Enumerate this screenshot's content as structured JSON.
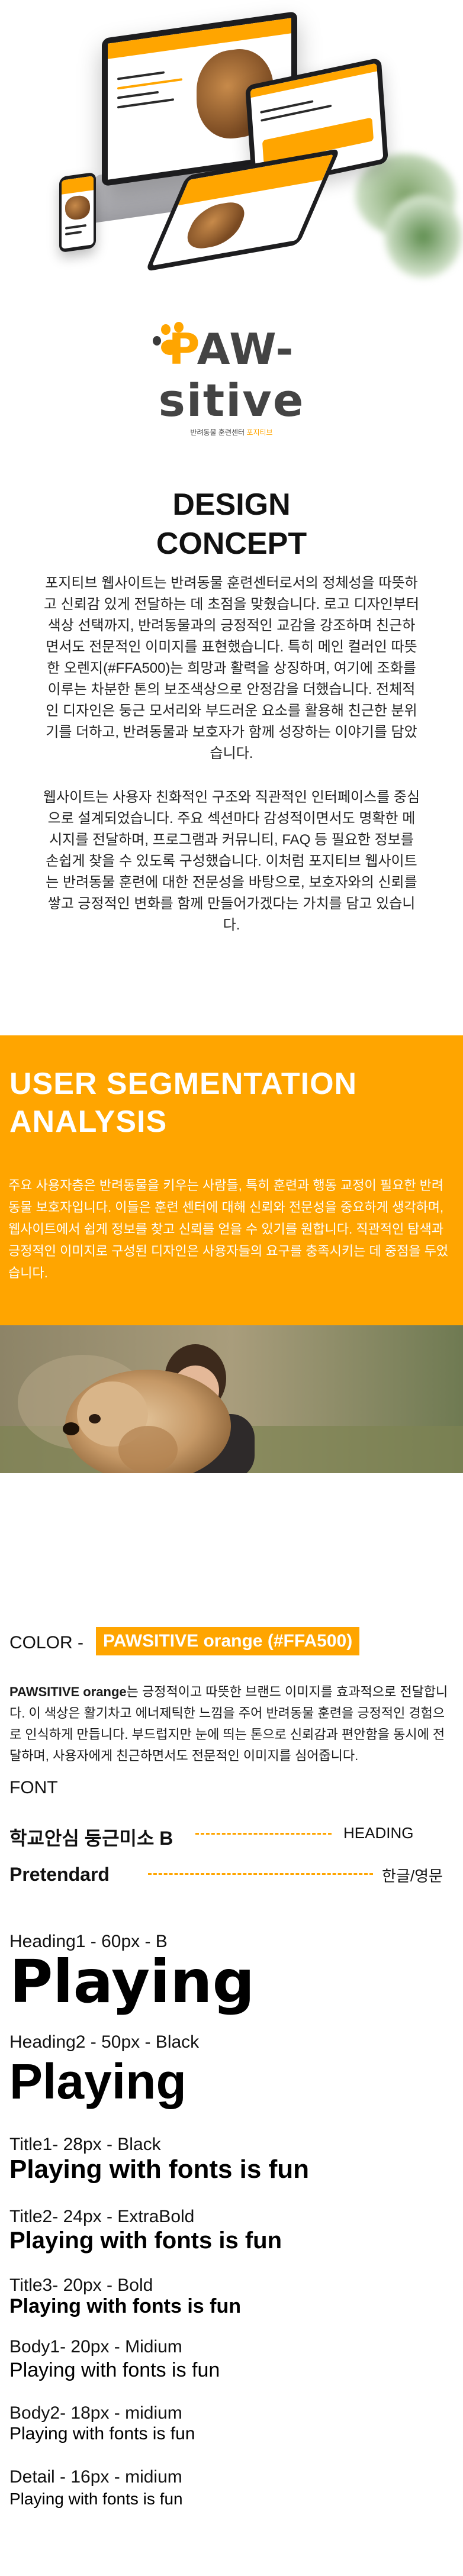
{
  "colors": {
    "brand": "#FFA500",
    "text": "#1a1a1a",
    "white": "#ffffff"
  },
  "logo": {
    "word_orange": "P",
    "word_rest": "AW-",
    "word_line2": "sitive",
    "subtitle_main": "반려동물 훈련센터",
    "subtitle_accent": "포지티브"
  },
  "design_concept": {
    "title_line1": "DESIGN",
    "title_line2": "CONCEPT",
    "para1": "포지티브 웹사이트는 반려동물 훈련센터로서의 정체성을 따뜻하고 신뢰감 있게 전달하는 데 초점을 맞췄습니다. 로고 디자인부터 색상 선택까지, 반려동물과의 긍정적인 교감을 강조하며 친근하면서도 전문적인 이미지를 표현했습니다. 특히 메인 컬러인 따뜻한 오렌지(#FFA500)는 희망과 활력을 상징하며, 여기에 조화를 이루는 차분한 톤의 보조색상으로 안정감을 더했습니다. 전체적인 디자인은 둥근 모서리와 부드러운 요소를 활용해 친근한 분위기를 더하고, 반려동물과 보호자가 함께 성장하는 이야기를 담았습니다.",
    "para2": "웹사이트는 사용자 친화적인 구조와 직관적인 인터페이스를 중심으로 설계되었습니다. 주요 섹션마다 감성적이면서도 명확한 메시지를 전달하며, 프로그램과 커뮤니티, FAQ 등 필요한 정보를 손쉽게 찾을 수 있도록 구성했습니다. 이처럼 포지티브 웹사이트는 반려동물 훈련에 대한 전문성을 바탕으로, 보호자와의 신뢰를 쌓고 긍정적인 변화를 함께 만들어가겠다는 가치를 담고 있습니다."
  },
  "segmentation": {
    "title_line1": "USER SEGMENTATION",
    "title_line2": "ANALYSIS",
    "body": "주요 사용자층은 반려동물을 키우는 사람들, 특히 훈련과 행동 교정이 필요한 반려동물 보호자입니다. 이들은 훈련 센터에 대해 신뢰와 전문성을 중요하게 생각하며, 웹사이트에서 쉽게 정보를 찾고 신뢰를 얻을 수 있기를 원합니다. 직관적인 탐색과 긍정적인 이미지로 구성된 디자인은 사용자들의 요구를 충족시키는 데 중점을 두었습니다."
  },
  "color_section": {
    "label": "COLOR -",
    "chip": "PAWSITIVE orange (#FFA500)",
    "body_bold": "PAWSITIVE orange",
    "body_rest": "는 긍정적이고 따뜻한 브랜드 이미지를 효과적으로 전달합니다. 이 색상은 활기차고 에너제틱한 느낌을 주어 반려동물 훈련을 긍정적인 경험으로 인식하게 만듭니다. 부드럽지만 눈에 띄는 톤으로 신뢰감과 편안함을 동시에 전달하며, 사용자에게 친근하면서도 전문적인 이미지를 심어줍니다."
  },
  "font_section": {
    "label": "FONT",
    "families": [
      {
        "name": "학교안심 둥근미소 B",
        "usage": "HEADING"
      },
      {
        "name": "Pretendard",
        "usage": "한글/영문"
      }
    ],
    "specs": [
      {
        "label": "Heading1 - 60px - B",
        "sample": "Playing"
      },
      {
        "label": "Heading2 - 50px - Black",
        "sample": "Playing"
      },
      {
        "label": "Title1- 28px - Black",
        "sample": "Playing with fonts is fun"
      },
      {
        "label": "Title2- 24px - ExtraBold",
        "sample": "Playing with fonts is fun"
      },
      {
        "label": "Title3- 20px - Bold",
        "sample": "Playing with fonts is fun"
      },
      {
        "label": "Body1- 20px - Midium",
        "sample": "Playing with fonts is fun"
      },
      {
        "label": "Body2- 18px - midium",
        "sample": "Playing with fonts is fun"
      },
      {
        "label": "Detail - 16px - midium",
        "sample": "Playing with fonts is fun"
      }
    ]
  }
}
